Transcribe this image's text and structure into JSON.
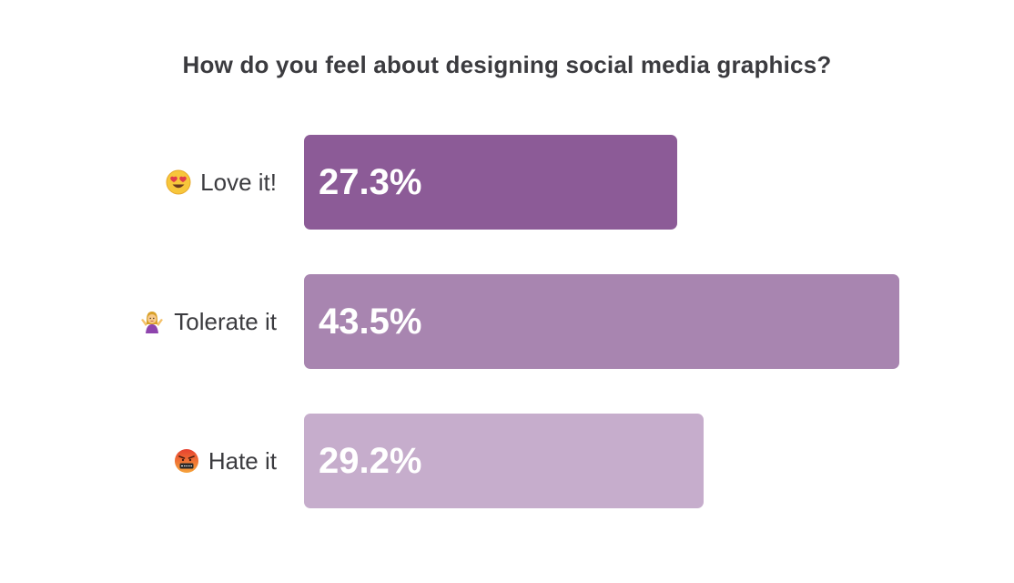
{
  "chart_data": {
    "type": "bar",
    "orientation": "horizontal",
    "title": "How do you feel about designing social media graphics?",
    "categories": [
      "Love it!",
      "Tolerate it",
      "Hate it"
    ],
    "values": [
      27.3,
      43.5,
      29.2
    ],
    "value_labels": [
      "27.3%",
      "43.5%",
      "29.2%"
    ],
    "category_icons": [
      "heart-eyes-emoji-icon",
      "shrugging-woman-emoji-icon",
      "angry-cursing-face-emoji-icon"
    ],
    "bar_colors": [
      "#8c5b97",
      "#a885b0",
      "#c6adcc"
    ],
    "xlim": [
      0,
      43.5
    ],
    "grid": false,
    "legend": "none"
  }
}
